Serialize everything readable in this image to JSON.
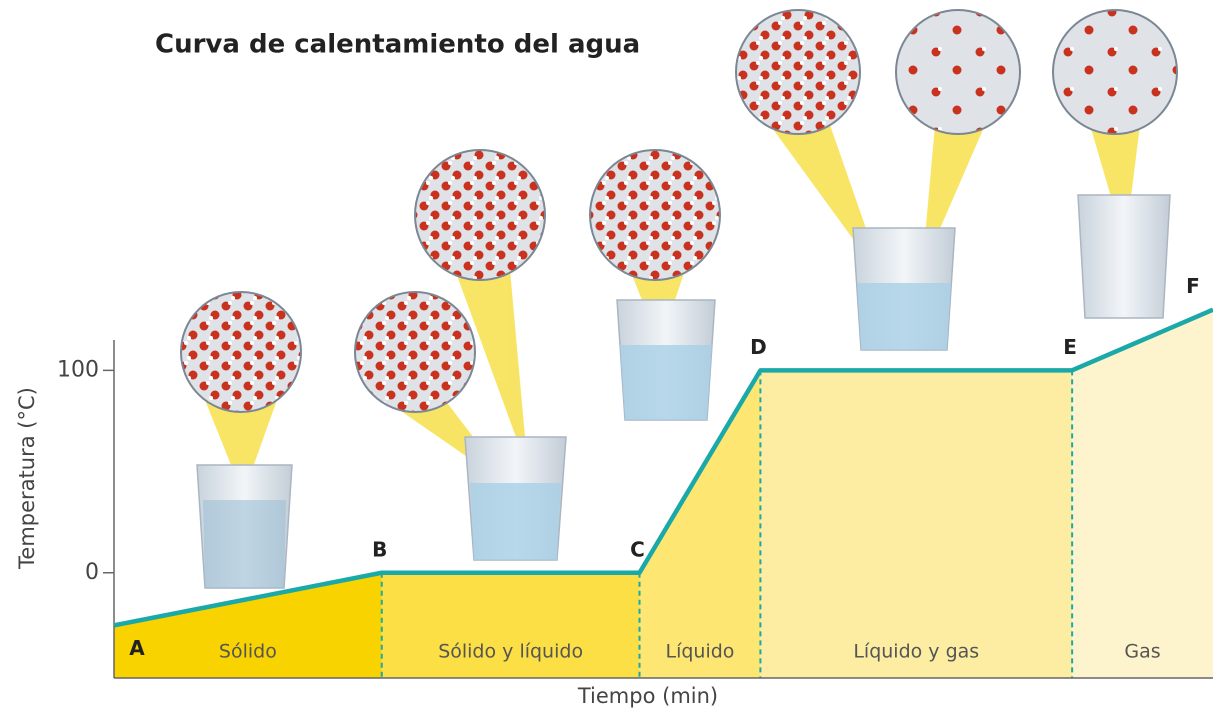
{
  "chart_data": {
    "type": "line",
    "title": "Curva de calentamiento del agua",
    "xlabel": "Tiempo (min)",
    "ylabel": "Temperatura (°C)",
    "x": [
      0,
      26.8,
      52.6,
      64.7,
      95.9,
      110
    ],
    "values": [
      -26,
      0,
      0,
      100,
      100,
      130
    ],
    "point_labels": [
      "A",
      "B",
      "C",
      "D",
      "E",
      "F"
    ],
    "regions": [
      {
        "name": "Sólido",
        "color": "#f8d300"
      },
      {
        "name": "Sólido y líquido",
        "color": "#fbdf45"
      },
      {
        "name": "Líquido",
        "color": "#fde672"
      },
      {
        "name": "Líquido y gas",
        "color": "#fdeda2"
      },
      {
        "name": "Gas",
        "color": "#fdf3cc"
      }
    ],
    "color": "#1aa9a8",
    "xlim": [
      0,
      110
    ],
    "ylim": [
      -52,
      115
    ],
    "yticks": [
      0,
      100
    ]
  }
}
